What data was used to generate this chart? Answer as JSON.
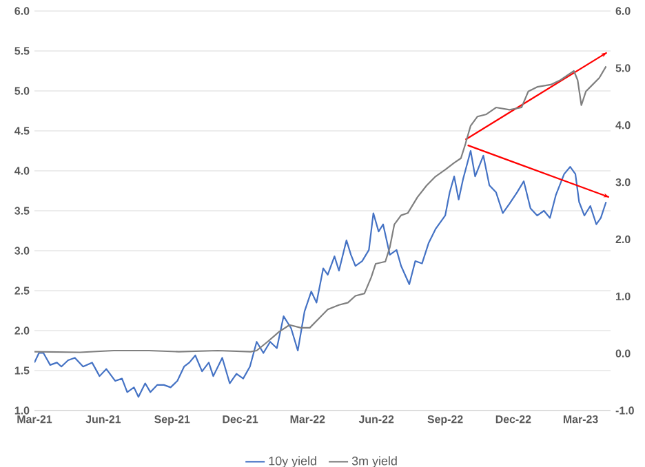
{
  "chart_data": {
    "type": "line",
    "xlim": [
      "2021-03-01",
      "2023-04-10"
    ],
    "xticks": [
      {
        "value": "2021-03-01",
        "label": "Mar-21"
      },
      {
        "value": "2021-06-01",
        "label": "Jun-21"
      },
      {
        "value": "2021-09-01",
        "label": "Sep-21"
      },
      {
        "value": "2021-12-01",
        "label": "Dec-21"
      },
      {
        "value": "2022-03-01",
        "label": "Mar-22"
      },
      {
        "value": "2022-06-01",
        "label": "Jun-22"
      },
      {
        "value": "2022-09-01",
        "label": "Sep-22"
      },
      {
        "value": "2022-12-01",
        "label": "Dec-22"
      },
      {
        "value": "2023-03-01",
        "label": "Mar-23"
      }
    ],
    "ylim": [
      1,
      6
    ],
    "yticks": [
      {
        "value": 1,
        "label": "1.0"
      },
      {
        "value": 1.5,
        "label": "1.5"
      },
      {
        "value": 2,
        "label": "2.0"
      },
      {
        "value": 2.5,
        "label": "2.5"
      },
      {
        "value": 3,
        "label": "3.0"
      },
      {
        "value": 3.5,
        "label": "3.5"
      },
      {
        "value": 4,
        "label": "4.0"
      },
      {
        "value": 4.5,
        "label": "4.5"
      },
      {
        "value": 5,
        "label": "5.0"
      },
      {
        "value": 5.5,
        "label": "5.5"
      },
      {
        "value": 6,
        "label": "6.0"
      }
    ],
    "y2lim": [
      -1,
      6
    ],
    "y2ticks": [
      {
        "value": -1,
        "label": "-1.0"
      },
      {
        "value": 0,
        "label": "0.0"
      },
      {
        "value": 1,
        "label": "1.0"
      },
      {
        "value": 2,
        "label": "2.0"
      },
      {
        "value": 3,
        "label": "3.0"
      },
      {
        "value": 4,
        "label": "4.0"
      },
      {
        "value": 5,
        "label": "5.0"
      },
      {
        "value": 6,
        "label": "6.0"
      }
    ],
    "grid": "y",
    "legend": "bottom",
    "marker": "none",
    "line_style": "solid",
    "series": [
      {
        "name": "10y yield",
        "color": "#4472c4",
        "x": [
          "2021-03-01",
          "2021-03-07",
          "2021-03-13",
          "2021-03-22",
          "2021-03-31",
          "2021-04-06",
          "2021-04-15",
          "2021-04-24",
          "2021-05-05",
          "2021-05-17",
          "2021-05-27",
          "2021-06-05",
          "2021-06-17",
          "2021-06-26",
          "2021-07-03",
          "2021-07-12",
          "2021-07-18",
          "2021-07-27",
          "2021-08-03",
          "2021-08-12",
          "2021-08-21",
          "2021-08-30",
          "2021-09-08",
          "2021-09-17",
          "2021-09-24",
          "2021-10-02",
          "2021-10-11",
          "2021-10-20",
          "2021-10-26",
          "2021-11-07",
          "2021-11-17",
          "2021-11-26",
          "2021-12-05",
          "2021-12-14",
          "2021-12-23",
          "2022-01-01",
          "2022-01-10",
          "2022-01-19",
          "2022-01-28",
          "2022-02-07",
          "2022-02-16",
          "2022-02-25",
          "2022-03-06",
          "2022-03-13",
          "2022-03-22",
          "2022-03-28",
          "2022-04-06",
          "2022-04-12",
          "2022-04-22",
          "2022-04-28",
          "2022-05-04",
          "2022-05-13",
          "2022-05-22",
          "2022-05-28",
          "2022-06-04",
          "2022-06-10",
          "2022-06-19",
          "2022-06-28",
          "2022-07-04",
          "2022-07-15",
          "2022-07-23",
          "2022-08-01",
          "2022-08-10",
          "2022-08-19",
          "2022-09-01",
          "2022-09-07",
          "2022-09-13",
          "2022-09-19",
          "2022-09-25",
          "2022-10-05",
          "2022-10-11",
          "2022-10-22",
          "2022-10-30",
          "2022-11-08",
          "2022-11-17",
          "2022-11-26",
          "2022-12-06",
          "2022-12-15",
          "2022-12-24",
          "2023-01-02",
          "2023-01-11",
          "2023-01-19",
          "2023-01-27",
          "2023-02-07",
          "2023-02-15",
          "2023-02-22",
          "2023-02-27",
          "2023-03-06",
          "2023-03-14",
          "2023-03-22",
          "2023-03-28",
          "2023-04-04"
        ],
        "values": [
          1.6,
          1.72,
          1.72,
          1.57,
          1.6,
          1.55,
          1.63,
          1.66,
          1.55,
          1.6,
          1.43,
          1.52,
          1.37,
          1.4,
          1.23,
          1.29,
          1.17,
          1.34,
          1.23,
          1.32,
          1.32,
          1.29,
          1.37,
          1.55,
          1.6,
          1.69,
          1.49,
          1.6,
          1.43,
          1.66,
          1.34,
          1.46,
          1.4,
          1.55,
          1.86,
          1.72,
          1.86,
          1.78,
          2.18,
          2.03,
          1.75,
          2.24,
          2.49,
          2.35,
          2.78,
          2.7,
          2.93,
          2.75,
          3.13,
          2.95,
          2.81,
          2.87,
          3.01,
          3.47,
          3.24,
          3.33,
          2.95,
          3.01,
          2.81,
          2.58,
          2.87,
          2.84,
          3.1,
          3.27,
          3.44,
          3.73,
          3.93,
          3.64,
          3.9,
          4.25,
          3.93,
          4.19,
          3.82,
          3.73,
          3.47,
          3.59,
          3.73,
          3.87,
          3.53,
          3.44,
          3.5,
          3.41,
          3.7,
          3.96,
          4.05,
          3.96,
          3.61,
          3.44,
          3.56,
          3.33,
          3.41,
          3.61
        ]
      },
      {
        "name": "3m yield",
        "color": "#7f7f7f",
        "axis": "y2",
        "x": [
          "2021-03-01",
          "2021-05-01",
          "2021-06-15",
          "2021-08-01",
          "2021-09-10",
          "2021-11-01",
          "2021-12-15",
          "2021-12-23",
          "2022-01-07",
          "2022-01-22",
          "2022-02-05",
          "2022-02-20",
          "2022-03-04",
          "2022-03-19",
          "2022-03-28",
          "2022-04-12",
          "2022-04-24",
          "2022-05-04",
          "2022-05-16",
          "2022-05-25",
          "2022-05-31",
          "2022-06-13",
          "2022-06-19",
          "2022-06-25",
          "2022-07-04",
          "2022-07-13",
          "2022-07-26",
          "2022-08-07",
          "2022-08-19",
          "2022-09-01",
          "2022-09-13",
          "2022-09-22",
          "2022-09-28",
          "2022-10-05",
          "2022-10-14",
          "2022-10-26",
          "2022-11-08",
          "2022-11-26",
          "2022-12-12",
          "2022-12-21",
          "2023-01-02",
          "2023-01-20",
          "2023-02-02",
          "2023-02-20",
          "2023-02-25",
          "2023-03-02",
          "2023-03-08",
          "2023-03-17",
          "2023-03-26",
          "2023-04-04"
        ],
        "values": [
          0.03,
          0.02,
          0.05,
          0.05,
          0.03,
          0.05,
          0.03,
          0.05,
          0.21,
          0.38,
          0.5,
          0.45,
          0.45,
          0.65,
          0.77,
          0.85,
          0.89,
          1.01,
          1.05,
          1.33,
          1.57,
          1.61,
          1.86,
          2.26,
          2.42,
          2.46,
          2.74,
          2.94,
          3.1,
          3.22,
          3.34,
          3.42,
          3.67,
          3.99,
          4.15,
          4.19,
          4.31,
          4.27,
          4.31,
          4.59,
          4.67,
          4.71,
          4.79,
          4.95,
          4.79,
          4.35,
          4.59,
          4.71,
          4.83,
          5.03
        ]
      },
      {
        "type": "line",
        "color": "#ff0000",
        "x": [
          "2022-09-28",
          "2023-04-05"
        ],
        "values": [
          4.39,
          5.48
        ]
      },
      {
        "type": "line",
        "color": "#ff0000",
        "x": [
          "2022-10-01",
          "2023-04-08"
        ],
        "values": [
          4.32,
          3.67
        ]
      }
    ]
  }
}
